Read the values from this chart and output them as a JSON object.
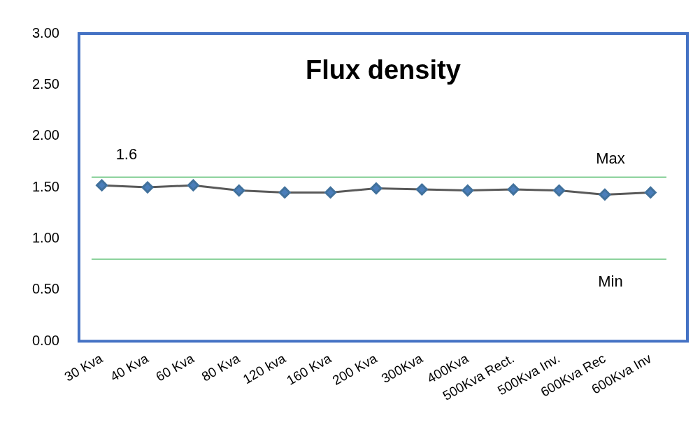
{
  "chart_data": {
    "type": "line",
    "title": "Flux density",
    "categories": [
      "30 Kva",
      "40 Kva",
      "60 Kva",
      "80 Kva",
      "120 kva",
      "160 Kva",
      "200 Kva",
      "300Kva",
      "400Kva",
      "500Kva Rect.",
      "500Kva Inv.",
      "600Kva Rec",
      "600Kva Inv"
    ],
    "series": [
      {
        "color": "#4a7ebb",
        "values": [
          1.52,
          1.5,
          1.52,
          1.47,
          1.45,
          1.45,
          1.49,
          1.48,
          1.47,
          1.48,
          1.47,
          1.43,
          1.45
        ]
      }
    ],
    "ylim": [
      0,
      3
    ],
    "yticks": [
      {
        "value": 0,
        "label": "0.00"
      },
      {
        "value": 0.5,
        "label": "0.50"
      },
      {
        "value": 1,
        "label": "1.00"
      },
      {
        "value": 1.5,
        "label": "1.50"
      },
      {
        "value": 2,
        "label": "2.00"
      },
      {
        "value": 2.5,
        "label": "2.50"
      },
      {
        "value": 3,
        "label": "3.00"
      }
    ],
    "ref_lines": [
      {
        "axis": "y",
        "value": 1.6,
        "label": "Max",
        "color": "#33b050"
      },
      {
        "axis": "y",
        "value": 0.8,
        "label": "Min",
        "color": "#33b050"
      }
    ],
    "annotations": [
      "1.6"
    ],
    "grid": false,
    "legend": false,
    "marker": "diamond",
    "line_style": "solid"
  }
}
